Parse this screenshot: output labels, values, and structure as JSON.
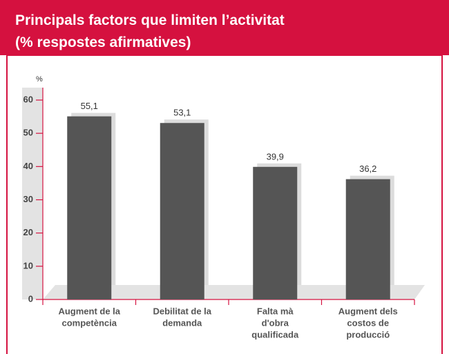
{
  "chart_data": {
    "type": "bar",
    "title": [
      "Principals factors que limiten l’activitat",
      "(% respostes afirmatives)"
    ],
    "ylabel": "%",
    "categories": [
      [
        "Augment de la",
        "competència"
      ],
      [
        "Debilitat de la",
        "demanda"
      ],
      [
        "Falta mà",
        "d'obra",
        "qualificada"
      ],
      [
        "Augment dels",
        "costos de",
        "producció"
      ]
    ],
    "values": [
      55.1,
      53.1,
      39.9,
      36.2
    ],
    "value_labels": [
      "55,1",
      "53,1",
      "39,9",
      "36,2"
    ],
    "color": "#555555",
    "ylim": [
      0,
      60
    ],
    "yticks": [
      0,
      10,
      20,
      30,
      40,
      50,
      60
    ]
  }
}
